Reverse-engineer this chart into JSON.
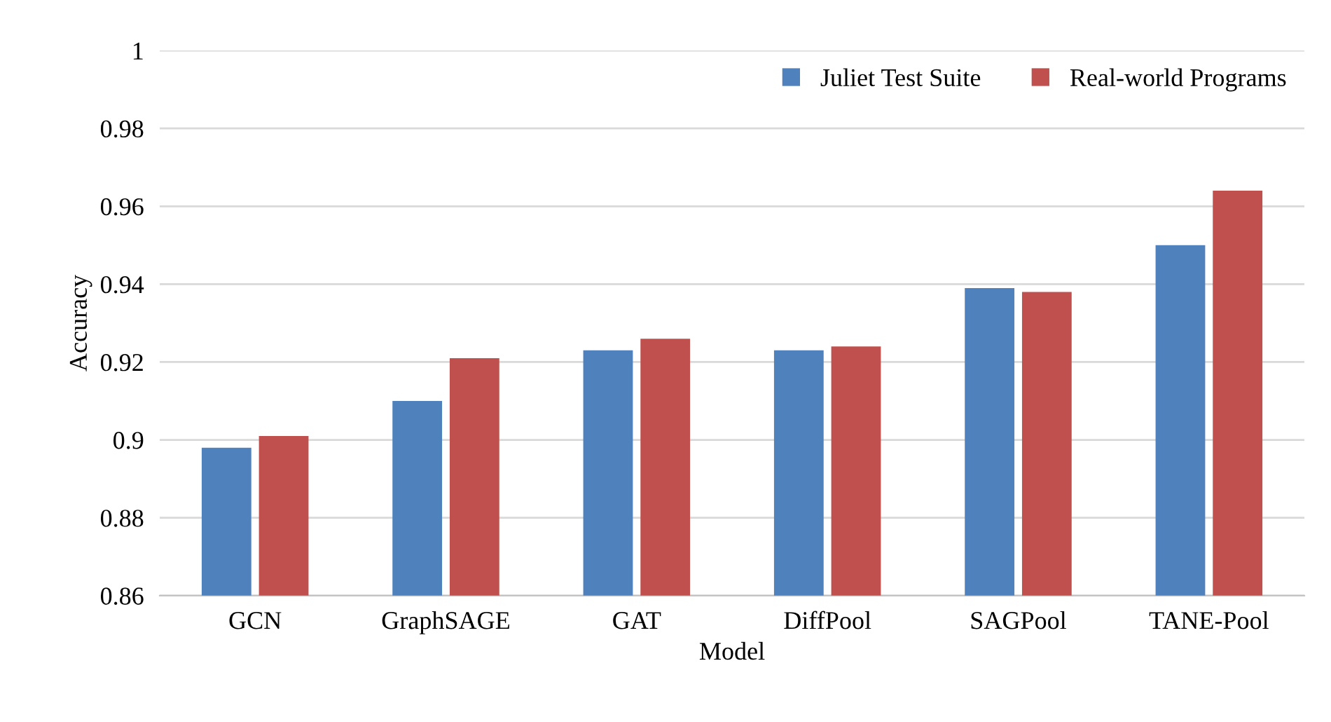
{
  "chart_data": {
    "type": "bar",
    "xlabel": "Model",
    "ylabel": "Accuracy",
    "categories": [
      "GCN",
      "GraphSAGE",
      "GAT",
      "DiffPool",
      "SAGPool",
      "TANE-Pool"
    ],
    "series": [
      {
        "name": "Juliet Test Suite",
        "color": "#4f81bd",
        "values": [
          0.898,
          0.91,
          0.923,
          0.923,
          0.939,
          0.95
        ]
      },
      {
        "name": "Real-world Programs",
        "color": "#c0504d",
        "values": [
          0.901,
          0.921,
          0.926,
          0.924,
          0.938,
          0.964
        ]
      }
    ],
    "ylim": [
      0.86,
      1
    ],
    "yticks": [
      0.86,
      0.88,
      0.9,
      0.92,
      0.94,
      0.96,
      0.98,
      1
    ],
    "grid": "y",
    "legend": "top right"
  }
}
